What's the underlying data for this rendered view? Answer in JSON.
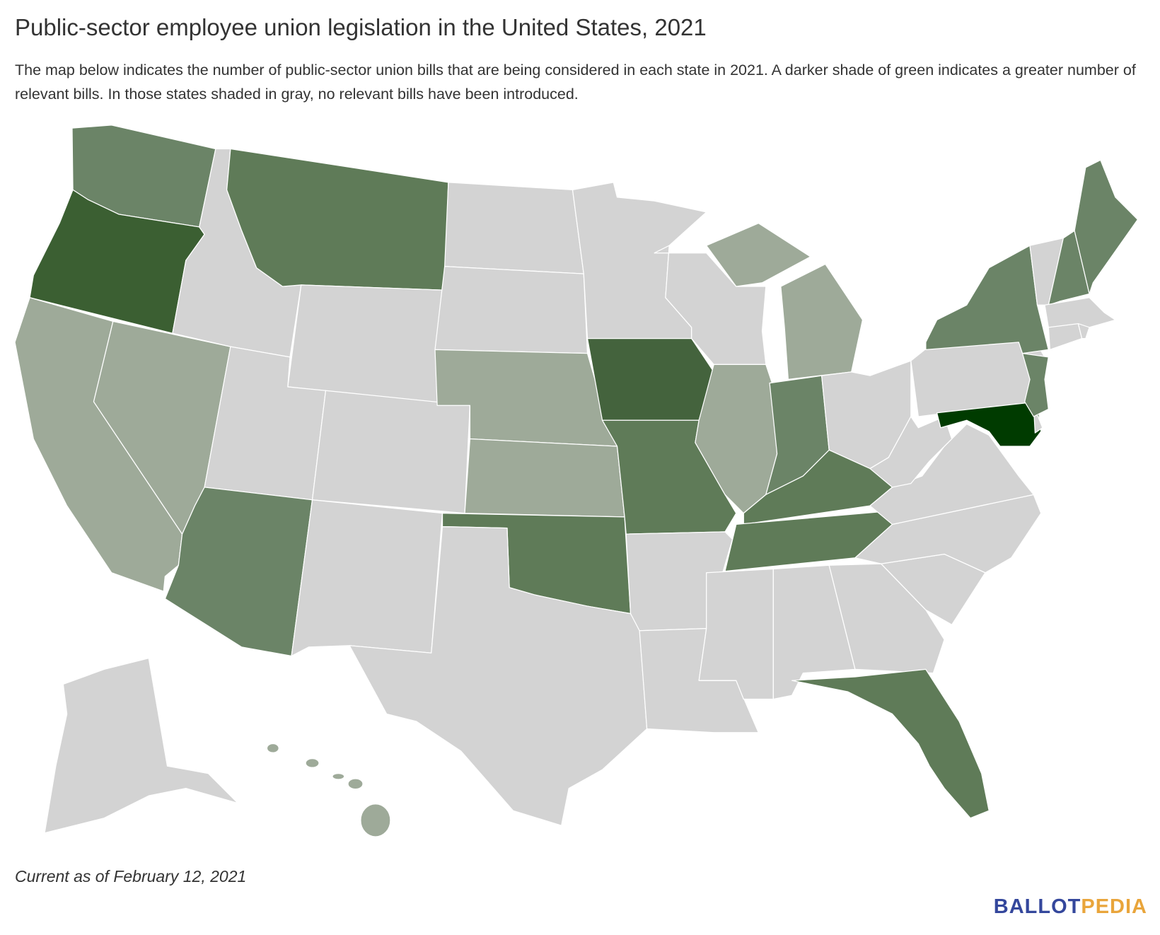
{
  "header": {
    "title": "Public-sector employee union legislation in the United States, 2021",
    "subtitle": "The map below indicates the number of public-sector union bills that are being considered in each state in 2021. A darker shade of green indicates a greater number of relevant bills. In those states shaded in gray, no relevant bills have been introduced."
  },
  "footer": {
    "note": "Current as of February 12, 2021",
    "logo": [
      "BALLOT",
      "PEDIA"
    ]
  }
}
